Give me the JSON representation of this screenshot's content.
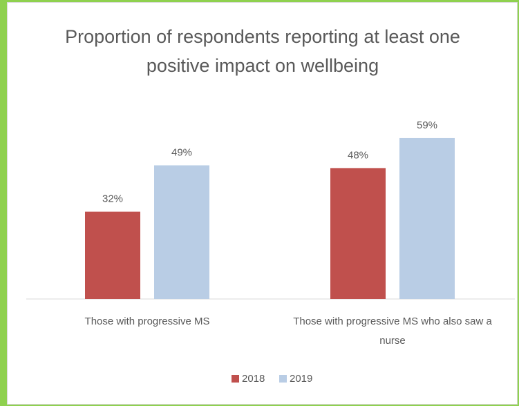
{
  "chart_data": {
    "type": "bar",
    "title": "Proportion of respondents reporting at least one positive impact on wellbeing",
    "categories": [
      "Those with progressive MS",
      "Those with progressive MS who also saw a nurse"
    ],
    "series": [
      {
        "name": "2018",
        "color": "#c0504d",
        "values": [
          32,
          48
        ],
        "value_labels": [
          "32%",
          "48%"
        ]
      },
      {
        "name": "2019",
        "color": "#b9cde5",
        "values": [
          49,
          59
        ],
        "value_labels": [
          "49%",
          "59%"
        ]
      }
    ],
    "legend": "bottom"
  }
}
